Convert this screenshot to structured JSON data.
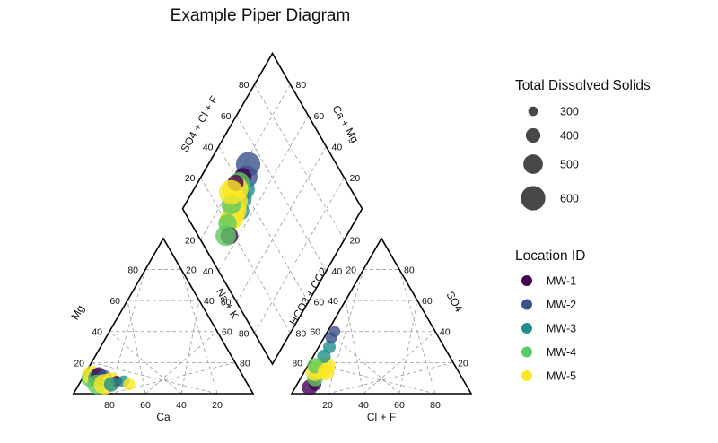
{
  "chart_data": {
    "type": "scatter",
    "subtype": "piper",
    "title": "Example Piper Diagram",
    "cation_triangle": {
      "axis_labels": {
        "left": "Mg",
        "bottom": "Ca",
        "right": "Na + K"
      },
      "ticks": [
        "20",
        "40",
        "60",
        "80"
      ],
      "points": [
        {
          "Ca": 86,
          "Mg": 10,
          "NaK": 4,
          "series": "MW-4",
          "tds": 450
        },
        {
          "Ca": 84,
          "Mg": 12,
          "NaK": 4,
          "series": "MW-5",
          "tds": 480
        },
        {
          "Ca": 82,
          "Mg": 10,
          "NaK": 8,
          "series": "MW-3",
          "tds": 460
        },
        {
          "Ca": 80,
          "Mg": 12,
          "NaK": 8,
          "series": "MW-1",
          "tds": 420
        },
        {
          "Ca": 78,
          "Mg": 10,
          "NaK": 12,
          "series": "MW-2",
          "tds": 430
        },
        {
          "Ca": 75,
          "Mg": 8,
          "NaK": 17,
          "series": "MW-5",
          "tds": 470
        },
        {
          "Ca": 72,
          "Mg": 8,
          "NaK": 20,
          "series": "MW-1",
          "tds": 330
        },
        {
          "Ca": 68,
          "Mg": 8,
          "NaK": 24,
          "series": "MW-3",
          "tds": 340
        },
        {
          "Ca": 66,
          "Mg": 6,
          "NaK": 28,
          "series": "MW-5",
          "tds": 350
        },
        {
          "Ca": 84,
          "Mg": 6,
          "NaK": 10,
          "series": "MW-4",
          "tds": 500
        },
        {
          "Ca": 80,
          "Mg": 6,
          "NaK": 14,
          "series": "MW-5",
          "tds": 520
        },
        {
          "Ca": 76,
          "Mg": 6,
          "NaK": 18,
          "series": "MW-3",
          "tds": 400
        }
      ]
    },
    "anion_triangle": {
      "axis_labels": {
        "left": "HCO3 + CO2",
        "bottom": "Cl + F",
        "right": "SO4"
      },
      "ticks": [
        "20",
        "40",
        "60",
        "80"
      ],
      "points": [
        {
          "HCO3": 88,
          "Cl": 8,
          "SO4": 4,
          "series": "MW-1",
          "tds": 420
        },
        {
          "HCO3": 84,
          "Cl": 10,
          "SO4": 6,
          "series": "MW-1",
          "tds": 360
        },
        {
          "HCO3": 82,
          "Cl": 8,
          "SO4": 10,
          "series": "MW-4",
          "tds": 430
        },
        {
          "HCO3": 80,
          "Cl": 6,
          "SO4": 14,
          "series": "MW-5",
          "tds": 470
        },
        {
          "HCO3": 76,
          "Cl": 8,
          "SO4": 16,
          "series": "MW-5",
          "tds": 500
        },
        {
          "HCO3": 72,
          "Cl": 10,
          "SO4": 18,
          "series": "MW-5",
          "tds": 480
        },
        {
          "HCO3": 70,
          "Cl": 6,
          "SO4": 24,
          "series": "MW-3",
          "tds": 380
        },
        {
          "HCO3": 64,
          "Cl": 6,
          "SO4": 30,
          "series": "MW-3",
          "tds": 360
        },
        {
          "HCO3": 60,
          "Cl": 4,
          "SO4": 36,
          "series": "MW-2",
          "tds": 340
        },
        {
          "HCO3": 56,
          "Cl": 4,
          "SO4": 40,
          "series": "MW-2",
          "tds": 330
        },
        {
          "HCO3": 78,
          "Cl": 4,
          "SO4": 18,
          "series": "MW-4",
          "tds": 420
        },
        {
          "HCO3": 74,
          "Cl": 12,
          "SO4": 14,
          "series": "MW-5",
          "tds": 450
        }
      ]
    },
    "diamond": {
      "axis_labels": {
        "upper_left": "SO4 + Cl + F",
        "upper_right": "Ca + Mg"
      },
      "ticks_left": [
        "20",
        "40",
        "60",
        "80"
      ],
      "ticks_right": [
        "20",
        "40",
        "60",
        "80"
      ],
      "points": [
        {
          "SO4ClF": 60,
          "CaMg": 66,
          "series": "MW-2",
          "tds": 600
        },
        {
          "SO4ClF": 54,
          "CaMg": 68,
          "series": "MW-2",
          "tds": 560
        },
        {
          "SO4ClF": 48,
          "CaMg": 70,
          "series": "MW-3",
          "tds": 520
        },
        {
          "SO4ClF": 42,
          "CaMg": 70,
          "series": "MW-3",
          "tds": 500
        },
        {
          "SO4ClF": 36,
          "CaMg": 72,
          "series": "MW-3",
          "tds": 480
        },
        {
          "SO4ClF": 50,
          "CaMg": 64,
          "series": "MW-1",
          "tds": 460
        },
        {
          "SO4ClF": 44,
          "CaMg": 62,
          "series": "MW-4",
          "tds": 540
        },
        {
          "SO4ClF": 38,
          "CaMg": 60,
          "series": "MW-5",
          "tds": 620
        },
        {
          "SO4ClF": 34,
          "CaMg": 64,
          "series": "MW-5",
          "tds": 600
        },
        {
          "SO4ClF": 30,
          "CaMg": 66,
          "series": "MW-5",
          "tds": 580
        },
        {
          "SO4ClF": 26,
          "CaMg": 66,
          "series": "MW-5",
          "tds": 560
        },
        {
          "SO4ClF": 22,
          "CaMg": 64,
          "series": "MW-5",
          "tds": 540
        },
        {
          "SO4ClF": 28,
          "CaMg": 60,
          "series": "MW-4",
          "tds": 500
        },
        {
          "SO4ClF": 18,
          "CaMg": 62,
          "series": "MW-4",
          "tds": 480
        },
        {
          "SO4ClF": 16,
          "CaMg": 68,
          "series": "MW-1",
          "tds": 460
        },
        {
          "SO4ClF": 12,
          "CaMg": 64,
          "series": "MW-4",
          "tds": 520
        },
        {
          "SO4ClF": 40,
          "CaMg": 58,
          "series": "MW-1",
          "tds": 430
        },
        {
          "SO4ClF": 32,
          "CaMg": 56,
          "series": "MW-5",
          "tds": 600
        }
      ]
    },
    "legend_tds": {
      "title": "Total Dissolved Solids",
      "entries": [
        {
          "label": "300",
          "value": 300
        },
        {
          "label": "400",
          "value": 400
        },
        {
          "label": "500",
          "value": 500
        },
        {
          "label": "600",
          "value": 600
        }
      ]
    },
    "legend_location": {
      "title": "Location ID",
      "entries": [
        {
          "label": "MW-1",
          "color": "#440154"
        },
        {
          "label": "MW-2",
          "color": "#3b528b"
        },
        {
          "label": "MW-3",
          "color": "#21908c"
        },
        {
          "label": "MW-4",
          "color": "#5ec962"
        },
        {
          "label": "MW-5",
          "color": "#fde725"
        }
      ]
    },
    "legend_placement": "right",
    "grid": true
  }
}
